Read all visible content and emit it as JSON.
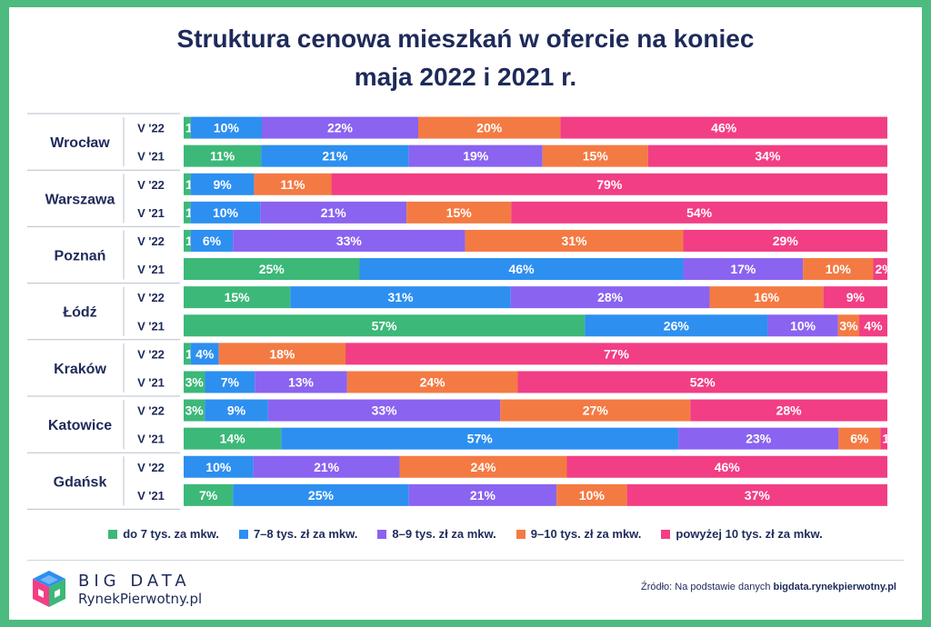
{
  "title_line1": "Struktura cenowa mieszkań w ofercie na koniec",
  "title_line2": "maja 2022 i 2021 r.",
  "legend": [
    {
      "label": "do 7 tys. za mkw.",
      "color": "#3cb878"
    },
    {
      "label": "7–8 tys. zł za mkw.",
      "color": "#2d8ff0"
    },
    {
      "label": "8–9 tys. zł za mkw.",
      "color": "#8a63f0"
    },
    {
      "label": "9–10 tys. zł za mkw.",
      "color": "#f47a43"
    },
    {
      "label": "powyżej 10 tys. zł za mkw.",
      "color": "#f23e84"
    }
  ],
  "logo": {
    "line1": "BIG DATA",
    "line2": "RynekPierwotny.pl"
  },
  "source": {
    "prefix": "Źródło: Na podstawie danych",
    "site": "bigdata.rynekpierwotny.pl"
  },
  "chart_data": {
    "type": "bar",
    "orientation": "horizontal-stacked-100",
    "title": "Struktura cenowa mieszkań w ofercie na koniec maja 2022 i 2021 r.",
    "series_names": [
      "do 7 tys. za mkw.",
      "7–8 tys. zł za mkw.",
      "8–9 tys. zł za mkw.",
      "9–10 tys. zł za mkw.",
      "powyżej 10 tys. zł za mkw."
    ],
    "colors": [
      "#3cb878",
      "#2d8ff0",
      "#8a63f0",
      "#f47a43",
      "#f23e84"
    ],
    "groups": [
      {
        "city": "Wrocław",
        "rows": [
          {
            "label": "V '22",
            "values": [
              1,
              10,
              22,
              20,
              46
            ]
          },
          {
            "label": "V '21",
            "values": [
              11,
              21,
              19,
              15,
              34
            ]
          }
        ]
      },
      {
        "city": "Warszawa",
        "rows": [
          {
            "label": "V '22",
            "values": [
              1,
              9,
              null,
              11,
              79
            ]
          },
          {
            "label": "V '21",
            "values": [
              1,
              10,
              21,
              15,
              54
            ]
          }
        ]
      },
      {
        "city": "Poznań",
        "rows": [
          {
            "label": "V '22",
            "values": [
              1,
              6,
              33,
              31,
              29
            ]
          },
          {
            "label": "V '21",
            "values": [
              25,
              46,
              17,
              10,
              2
            ]
          }
        ]
      },
      {
        "city": "Łódź",
        "rows": [
          {
            "label": "V '22",
            "values": [
              15,
              31,
              28,
              16,
              9
            ]
          },
          {
            "label": "V '21",
            "values": [
              57,
              26,
              10,
              3,
              4
            ]
          }
        ]
      },
      {
        "city": "Kraków",
        "rows": [
          {
            "label": "V '22",
            "values": [
              1,
              4,
              null,
              18,
              77
            ]
          },
          {
            "label": "V '21",
            "values": [
              3,
              7,
              13,
              24,
              52
            ]
          }
        ]
      },
      {
        "city": "Katowice",
        "rows": [
          {
            "label": "V '22",
            "values": [
              3,
              9,
              33,
              27,
              28
            ]
          },
          {
            "label": "V '21",
            "values": [
              14,
              57,
              23,
              6,
              1
            ]
          }
        ]
      },
      {
        "city": "Gdańsk",
        "rows": [
          {
            "label": "V '22",
            "values": [
              null,
              10,
              21,
              24,
              46
            ]
          },
          {
            "label": "V '21",
            "values": [
              7,
              25,
              21,
              10,
              37
            ]
          }
        ]
      }
    ]
  }
}
